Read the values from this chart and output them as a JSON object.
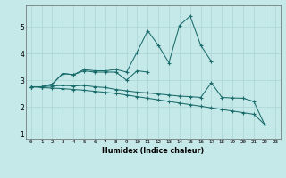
{
  "xlabel": "Humidex (Indice chaleur)",
  "bg_color": "#c5e8e8",
  "line_color": "#1a6b6b",
  "grid_color": "#b0d8d8",
  "xlim": [
    -0.5,
    23.5
  ],
  "ylim": [
    0.8,
    5.8
  ],
  "xticks": [
    0,
    1,
    2,
    3,
    4,
    5,
    6,
    7,
    8,
    9,
    10,
    11,
    12,
    13,
    14,
    15,
    16,
    17,
    18,
    19,
    20,
    21,
    22,
    23
  ],
  "yticks": [
    1,
    2,
    3,
    4,
    5
  ],
  "lines": [
    {
      "x": [
        0,
        1,
        2,
        3,
        4,
        5,
        6,
        7,
        8,
        9,
        10,
        11,
        12,
        13,
        14,
        15,
        16,
        17
      ],
      "y": [
        2.75,
        2.75,
        2.85,
        3.25,
        3.2,
        3.4,
        3.35,
        3.35,
        3.4,
        3.3,
        4.05,
        4.85,
        4.3,
        3.65,
        5.05,
        5.4,
        4.3,
        3.7
      ]
    },
    {
      "x": [
        0,
        1,
        2,
        3,
        4,
        5,
        6,
        7,
        8,
        9,
        10,
        11
      ],
      "y": [
        2.75,
        2.75,
        2.85,
        3.25,
        3.2,
        3.35,
        3.3,
        3.3,
        3.3,
        3.0,
        3.35,
        3.3
      ]
    },
    {
      "x": [
        0,
        1,
        2,
        3,
        4,
        5,
        6,
        7,
        8,
        9,
        10,
        11,
        12,
        13,
        14,
        15,
        16,
        17,
        18,
        19,
        20,
        21,
        22
      ],
      "y": [
        2.75,
        2.75,
        2.78,
        2.8,
        2.78,
        2.8,
        2.75,
        2.72,
        2.65,
        2.6,
        2.55,
        2.52,
        2.48,
        2.44,
        2.4,
        2.38,
        2.35,
        2.9,
        2.35,
        2.33,
        2.32,
        2.2,
        1.35
      ]
    },
    {
      "x": [
        0,
        1,
        2,
        3,
        4,
        5,
        6,
        7,
        8,
        9,
        10,
        11,
        12,
        13,
        14,
        15,
        16,
        17,
        18,
        19,
        20,
        21,
        22
      ],
      "y": [
        2.75,
        2.72,
        2.7,
        2.68,
        2.65,
        2.62,
        2.58,
        2.54,
        2.5,
        2.44,
        2.38,
        2.32,
        2.26,
        2.2,
        2.14,
        2.08,
        2.02,
        1.96,
        1.9,
        1.84,
        1.78,
        1.72,
        1.35
      ]
    }
  ]
}
